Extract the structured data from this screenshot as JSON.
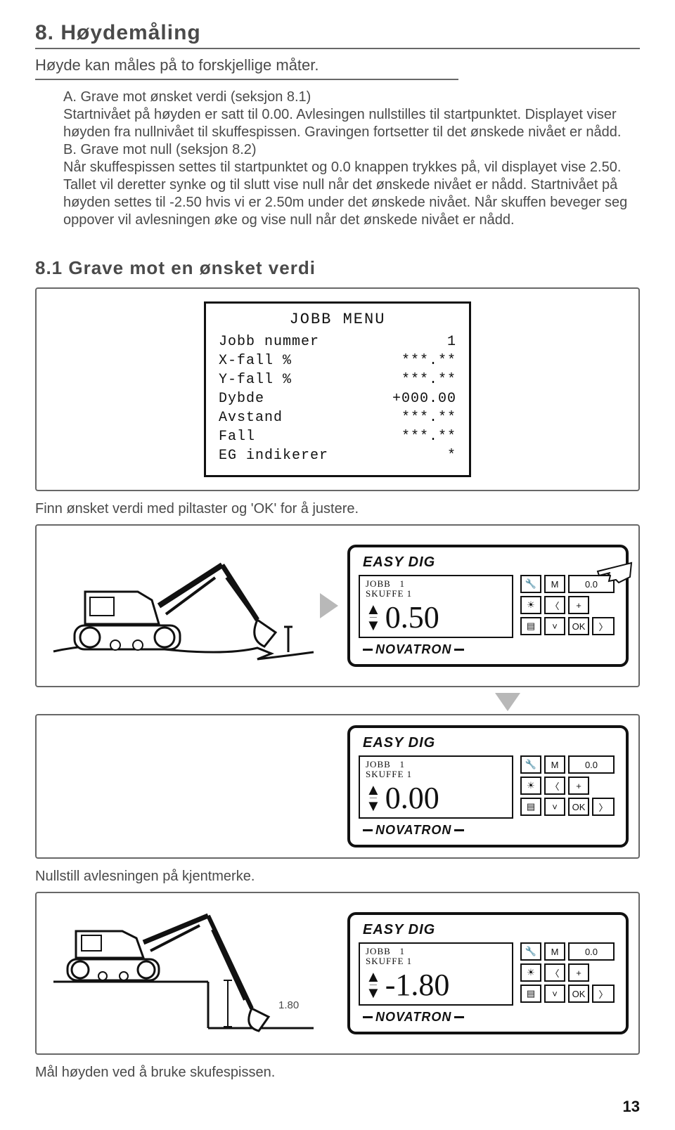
{
  "heading": "8. Høydemåling",
  "subtitle": "Høyde kan måles på to forskjellige måter.",
  "body": "A. Grave mot ønsket verdi (seksjon 8.1)\nStartnivået på høyden er satt til 0.00. Avlesingen nullstilles til startpunktet. Displayet viser høyden fra nullnivået til skuffespissen. Gravingen fortsetter til det ønskede nivået er nådd.\nB. Grave mot null (seksjon 8.2)\nNår skuffespissen settes til startpunktet og 0.0 knappen trykkes på, vil displayet vise 2.50. Tallet vil deretter synke og til slutt vise null når det ønskede nivået er nådd. Startnivået på høyden settes til -2.50 hvis vi er 2.50m under det ønskede nivået. Når skuffen beveger seg oppover vil avlesningen øke og vise null når det ønskede nivået er nådd.",
  "section81": "8.1 Grave mot en ønsket verdi",
  "menu": {
    "title": "JOBB MENU",
    "rows": [
      {
        "l": "Jobb nummer",
        "r": "1"
      },
      {
        "l": "X-fall %",
        "r": "***.**"
      },
      {
        "l": "Y-fall %",
        "r": "***.**"
      },
      {
        "l": "Dybde",
        "r": "+000.00"
      },
      {
        "l": "Avstand",
        "r": "***.**"
      },
      {
        "l": "Fall",
        "r": "***.**"
      },
      {
        "l": "EG indikerer",
        "r": "*"
      }
    ]
  },
  "caption_adjust": "Finn ønsket verdi med piltaster og 'OK' for å justere.",
  "caption_null": "Nullstill avlesningen på kjentmerke.",
  "caption_measure": "Mål høyden ved å bruke skufespissen.",
  "device": {
    "brand": "EASY DIG",
    "job_label": "JOBB",
    "job_num": "1",
    "bucket_label": "SKUFFE",
    "bucket_num": "1",
    "logo": "NOVATRON",
    "m_label": "M",
    "m_value": "0.0",
    "ok": "OK",
    "plus": "+",
    "wrench": "🔧",
    "sun": "☀",
    "lamp": "▤"
  },
  "screens": [
    {
      "value": "0.50",
      "show_hand": true,
      "show_depth": false,
      "depth": ""
    },
    {
      "value": "0.00",
      "show_hand": false,
      "show_depth": false,
      "depth": ""
    },
    {
      "value": "-1.80",
      "show_hand": false,
      "show_depth": true,
      "depth": "1.80"
    }
  ],
  "page": "13"
}
